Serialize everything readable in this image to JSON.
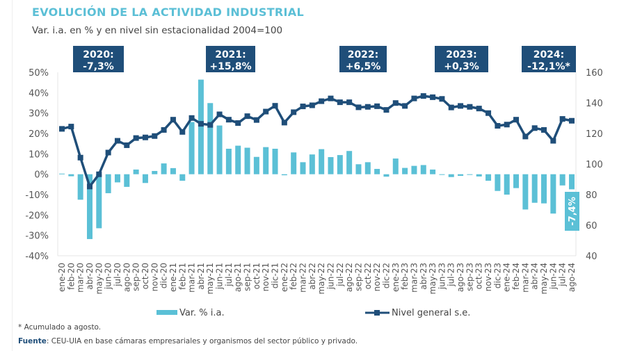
{
  "title": "EVOLUCIÓN DE LA ACTIVIDAD INDUSTRIAL",
  "subtitle": "Var. i.a. en % y en nivel sin estacionalidad 2004=100",
  "footnote": "* Acumulado a agosto.",
  "source_label": "Fuente",
  "source_text": ": CEU-UIA en base cámaras empresariales y organismos del sector público y privado.",
  "colors": {
    "bar": "#5bc0d6",
    "line": "#1f4e79",
    "box": "#1f4e79",
    "title": "#5bbfd6"
  },
  "chart_data": {
    "type": "bar+line",
    "categories": [
      "ene-20",
      "feb-20",
      "mar-20",
      "abr-20",
      "may-20",
      "jun-20",
      "jul-20",
      "ago-20",
      "sep-20",
      "oct-20",
      "nov-20",
      "dic-20",
      "ene-21",
      "feb-21",
      "mar-21",
      "abr-21",
      "may-21",
      "jun-21",
      "jul-21",
      "ago-21",
      "sep-21",
      "oct-21",
      "nov-21",
      "dic-21",
      "ene-22",
      "feb-22",
      "mar-22",
      "abr-22",
      "may-22",
      "jun-22",
      "jul-22",
      "ago-22",
      "sep-22",
      "oct-22",
      "nov-22",
      "dic-22",
      "ene-23",
      "feb-23",
      "mar-23",
      "abr-23",
      "may-23",
      "jun-23",
      "jul-23",
      "ago-23",
      "sep-23",
      "oct-23",
      "nov-23",
      "dic-23",
      "ene-24",
      "feb-24",
      "mar-24",
      "abr-24",
      "may-24",
      "jun-24",
      "jul-24",
      "ago-24"
    ],
    "series": [
      {
        "name": "Var. % i.a.",
        "type": "bar",
        "axis": "left",
        "values": [
          0.3,
          -1,
          -12.5,
          -31.8,
          -26.5,
          -9.3,
          -4,
          -6.2,
          2.3,
          -4.3,
          1.6,
          5.3,
          3,
          -3.2,
          25.6,
          46.4,
          34.9,
          23.9,
          12.5,
          14,
          13,
          8.5,
          13.3,
          12.5,
          -0.5,
          10.7,
          5.9,
          9.7,
          12.3,
          8.4,
          9.4,
          11.4,
          4.9,
          5.9,
          2.6,
          -1.2,
          7.7,
          3.1,
          4.1,
          4.5,
          2.3,
          -0.2,
          -1.4,
          -0.8,
          -0.1,
          -1.1,
          -3.2,
          -8.2,
          -10,
          -6.8,
          -17.3,
          -14,
          -14.3,
          -19.3,
          -5.5,
          -7.4
        ]
      },
      {
        "name": "Nivel general s.e.",
        "type": "line",
        "axis": "right",
        "values": [
          123,
          124.5,
          104.2,
          85.3,
          93.3,
          107.5,
          115.2,
          112.3,
          117,
          117.4,
          118.3,
          122.3,
          129,
          121,
          130.1,
          126.3,
          125.6,
          132.5,
          129,
          126.8,
          131.3,
          128.8,
          134.3,
          138.1,
          127.1,
          133.9,
          137.7,
          138.4,
          141.1,
          142.9,
          140.4,
          140.4,
          137.1,
          137.4,
          137.8,
          135.4,
          139.9,
          138,
          142.9,
          144.5,
          143.7,
          142.6,
          137,
          138,
          137.4,
          136.3,
          133.3,
          125,
          125.8,
          129,
          118,
          123.5,
          122.3,
          115.2,
          129.5,
          128.3
        ]
      }
    ],
    "left_axis": {
      "ylim": [
        -40,
        50
      ],
      "ticks": [
        "50%",
        "40%",
        "30%",
        "20%",
        "10%",
        "0%",
        "-10%",
        "-20%",
        "-30%",
        "-40%"
      ],
      "tick_values": [
        50,
        40,
        30,
        20,
        10,
        0,
        -10,
        -20,
        -30,
        -40
      ]
    },
    "right_axis": {
      "ylim": [
        40,
        160
      ],
      "ticks": [
        "160",
        "140",
        "120",
        "100",
        "80",
        "60",
        "40"
      ],
      "tick_values": [
        160,
        140,
        120,
        100,
        80,
        60,
        40
      ]
    },
    "annotations": [
      {
        "year": "2020:",
        "value": "-7,3%",
        "category": "abr-20"
      },
      {
        "year": "2021:",
        "value": "+15,8%",
        "category": "may-21"
      },
      {
        "year": "2022:",
        "value": "+6,5%",
        "category": "jul-22"
      },
      {
        "year": "2023:",
        "value": "+0,3%",
        "category": "jun-23"
      },
      {
        "year": "2024:",
        "value": "-12,1%*",
        "category": "abr-24"
      }
    ],
    "last_bar_label": "-7,4%",
    "legend": [
      "Var. % i.a.",
      "Nivel general s.e."
    ],
    "legend_position": "bottom",
    "grid": false
  }
}
